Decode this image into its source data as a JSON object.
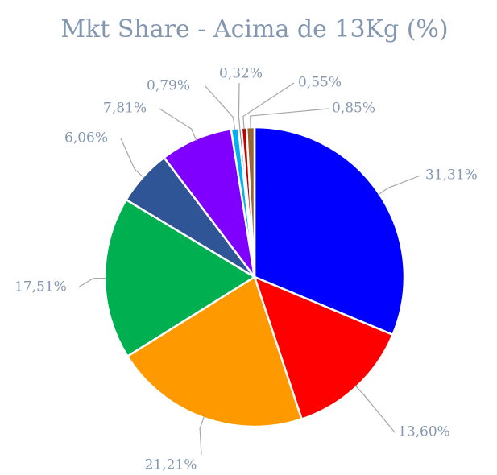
{
  "chart_data": {
    "type": "pie",
    "title": "Mkt Share - Acima de 13Kg (%)",
    "values": [
      31.31,
      13.6,
      21.21,
      17.51,
      6.06,
      7.81,
      0.79,
      0.32,
      0.55,
      0.85
    ],
    "value_labels": [
      "31,31%",
      "13,60%",
      "21,21%",
      "17,51%",
      "6,06%",
      "7,81%",
      "0,79%",
      "0,32%",
      "0,55%",
      "0,85%"
    ],
    "colors": [
      "#0000ff",
      "#ff0000",
      "#ff9900",
      "#00b050",
      "#2f5597",
      "#7f00ff",
      "#00b0f0",
      "#7f7f7f",
      "#c00000",
      "#996633"
    ]
  }
}
